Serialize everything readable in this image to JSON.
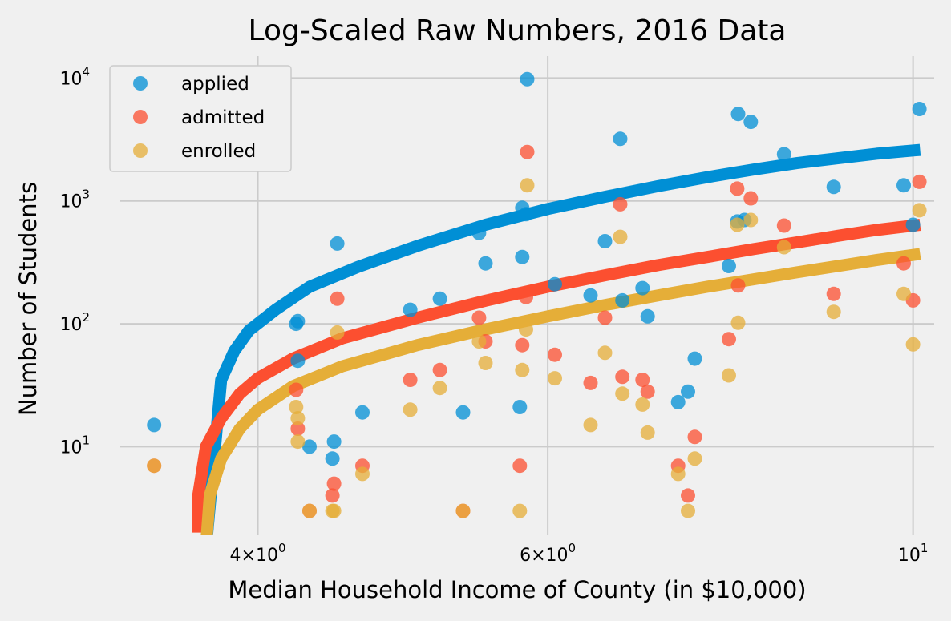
{
  "colors": {
    "background": "#f0f0f0",
    "grid": "#cbcbcb",
    "applied": "#008fd5",
    "admitted": "#fc4f30",
    "enrolled": "#e5ae38"
  },
  "chart_data": {
    "type": "scatter",
    "title": "Log-Scaled Raw Numbers, 2016 Data",
    "xlabel": "Median Household Income of County (in $10,000)",
    "ylabel": "Number of Students",
    "x_scale": "log",
    "y_scale": "log",
    "xlim": [
      3.3,
      10.3
    ],
    "ylim": [
      1.9,
      14000
    ],
    "grid": true,
    "legend_position": "upper-left",
    "x_ticks": [
      {
        "value": 4,
        "base": "4",
        "exp": "0",
        "sep": "×"
      },
      {
        "value": 6,
        "base": "6",
        "exp": "0",
        "sep": "×"
      },
      {
        "value": 10,
        "base": "10",
        "exp": "1",
        "sep": ""
      }
    ],
    "y_ticks": [
      {
        "value": 10,
        "base": "10",
        "exp": "1"
      },
      {
        "value": 100,
        "base": "10",
        "exp": "2"
      },
      {
        "value": 1000,
        "base": "10",
        "exp": "3"
      },
      {
        "value": 10000,
        "base": "10",
        "exp": "4"
      }
    ],
    "series": [
      {
        "name": "applied",
        "color": "#008fd5",
        "points": [
          [
            3.46,
            15
          ],
          [
            4.22,
            100
          ],
          [
            4.23,
            105
          ],
          [
            4.23,
            50
          ],
          [
            4.3,
            10
          ],
          [
            4.45,
            11
          ],
          [
            4.44,
            8
          ],
          [
            4.47,
            450
          ],
          [
            4.63,
            19
          ],
          [
            4.95,
            130
          ],
          [
            5.16,
            160
          ],
          [
            5.33,
            19
          ],
          [
            5.45,
            550
          ],
          [
            5.5,
            310
          ],
          [
            5.77,
            21
          ],
          [
            5.79,
            350
          ],
          [
            5.79,
            880
          ],
          [
            5.82,
            780
          ],
          [
            5.83,
            9800
          ],
          [
            6.06,
            210
          ],
          [
            6.37,
            170
          ],
          [
            6.5,
            470
          ],
          [
            6.64,
            3200
          ],
          [
            6.66,
            155
          ],
          [
            6.85,
            195
          ],
          [
            6.9,
            115
          ],
          [
            7.2,
            23
          ],
          [
            7.3,
            28
          ],
          [
            7.37,
            52
          ],
          [
            7.73,
            295
          ],
          [
            7.82,
            680
          ],
          [
            7.83,
            5100
          ],
          [
            7.9,
            700
          ],
          [
            7.97,
            4400
          ],
          [
            8.35,
            2400
          ],
          [
            8.95,
            1300
          ],
          [
            9.87,
            1340
          ],
          [
            10.0,
            640
          ],
          [
            10.09,
            5600
          ]
        ]
      },
      {
        "name": "admitted",
        "color": "#fc4f30",
        "points": [
          [
            3.46,
            7
          ],
          [
            4.22,
            29
          ],
          [
            4.23,
            14
          ],
          [
            4.3,
            3
          ],
          [
            4.44,
            4
          ],
          [
            4.45,
            5
          ],
          [
            4.47,
            160
          ],
          [
            4.63,
            7
          ],
          [
            4.95,
            35
          ],
          [
            5.16,
            42
          ],
          [
            5.33,
            3
          ],
          [
            5.45,
            112
          ],
          [
            5.5,
            72
          ],
          [
            5.77,
            7
          ],
          [
            5.79,
            67
          ],
          [
            5.82,
            165
          ],
          [
            5.83,
            2500
          ],
          [
            6.06,
            56
          ],
          [
            6.37,
            33
          ],
          [
            6.5,
            112
          ],
          [
            6.64,
            940
          ],
          [
            6.66,
            37
          ],
          [
            6.85,
            35
          ],
          [
            6.9,
            28
          ],
          [
            7.2,
            7
          ],
          [
            7.3,
            4
          ],
          [
            7.37,
            12
          ],
          [
            7.73,
            75
          ],
          [
            7.82,
            1260
          ],
          [
            7.83,
            205
          ],
          [
            7.97,
            1050
          ],
          [
            8.35,
            630
          ],
          [
            8.95,
            175
          ],
          [
            9.87,
            310
          ],
          [
            10.0,
            155
          ],
          [
            10.09,
            1430
          ]
        ]
      },
      {
        "name": "enrolled",
        "color": "#e5ae38",
        "points": [
          [
            3.46,
            7
          ],
          [
            4.22,
            21
          ],
          [
            4.23,
            17
          ],
          [
            4.23,
            11
          ],
          [
            4.3,
            3
          ],
          [
            4.44,
            3
          ],
          [
            4.45,
            3
          ],
          [
            4.47,
            85
          ],
          [
            4.63,
            6
          ],
          [
            4.95,
            20
          ],
          [
            5.16,
            30
          ],
          [
            5.33,
            3
          ],
          [
            5.45,
            72
          ],
          [
            5.5,
            48
          ],
          [
            5.77,
            3
          ],
          [
            5.79,
            42
          ],
          [
            5.82,
            90
          ],
          [
            5.83,
            1340
          ],
          [
            6.06,
            36
          ],
          [
            6.37,
            15
          ],
          [
            6.5,
            58
          ],
          [
            6.64,
            510
          ],
          [
            6.66,
            27
          ],
          [
            6.85,
            22
          ],
          [
            6.9,
            13
          ],
          [
            7.2,
            6
          ],
          [
            7.3,
            3
          ],
          [
            7.37,
            8
          ],
          [
            7.73,
            38
          ],
          [
            7.82,
            640
          ],
          [
            7.83,
            102
          ],
          [
            7.97,
            700
          ],
          [
            8.35,
            420
          ],
          [
            8.95,
            125
          ],
          [
            9.87,
            175
          ],
          [
            10.0,
            68
          ],
          [
            10.09,
            840
          ]
        ]
      }
    ],
    "fits": [
      {
        "series": "applied",
        "color": "#008fd5",
        "points": [
          [
            3.72,
            1.5
          ],
          [
            3.8,
            35
          ],
          [
            3.87,
            60
          ],
          [
            3.95,
            88
          ],
          [
            4.1,
            130
          ],
          [
            4.3,
            200
          ],
          [
            4.6,
            290
          ],
          [
            5.0,
            430
          ],
          [
            5.5,
            640
          ],
          [
            6.0,
            860
          ],
          [
            6.5,
            1080
          ],
          [
            7.0,
            1320
          ],
          [
            7.5,
            1560
          ],
          [
            8.0,
            1800
          ],
          [
            8.5,
            2030
          ],
          [
            9.0,
            2220
          ],
          [
            9.5,
            2420
          ],
          [
            10.1,
            2600
          ]
        ]
      },
      {
        "series": "admitted",
        "color": "#fc4f30",
        "points": [
          [
            3.68,
            2
          ],
          [
            3.68,
            4
          ],
          [
            3.72,
            10
          ],
          [
            3.8,
            17
          ],
          [
            3.9,
            27
          ],
          [
            4.0,
            36
          ],
          [
            4.2,
            52
          ],
          [
            4.5,
            76
          ],
          [
            5.0,
            112
          ],
          [
            5.5,
            154
          ],
          [
            6.0,
            200
          ],
          [
            6.5,
            248
          ],
          [
            7.0,
            300
          ],
          [
            7.5,
            350
          ],
          [
            8.0,
            405
          ],
          [
            8.5,
            460
          ],
          [
            9.0,
            520
          ],
          [
            9.5,
            580
          ],
          [
            10.1,
            640
          ]
        ]
      },
      {
        "series": "enrolled",
        "color": "#e5ae38",
        "points": [
          [
            3.72,
            1.5
          ],
          [
            3.74,
            4
          ],
          [
            3.8,
            8
          ],
          [
            3.9,
            14
          ],
          [
            4.0,
            20
          ],
          [
            4.2,
            31
          ],
          [
            4.5,
            45
          ],
          [
            5.0,
            67
          ],
          [
            5.5,
            90
          ],
          [
            6.0,
            115
          ],
          [
            6.5,
            142
          ],
          [
            7.0,
            170
          ],
          [
            7.5,
            200
          ],
          [
            8.0,
            230
          ],
          [
            8.5,
            262
          ],
          [
            9.0,
            295
          ],
          [
            9.5,
            330
          ],
          [
            10.1,
            370
          ]
        ]
      }
    ]
  }
}
